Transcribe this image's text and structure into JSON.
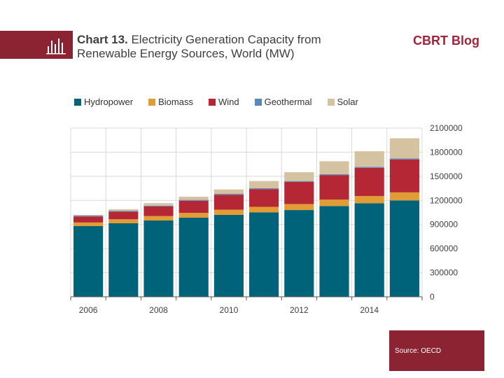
{
  "header": {
    "title_bold": "Chart 13.",
    "title_rest": " Electricity Generation Capacity from",
    "title_line2": "Renewable Energy Sources, World (MW)",
    "brand": "CBRT Blog"
  },
  "legend": [
    {
      "label": "Hydropower",
      "color": "#006379"
    },
    {
      "label": "Biomass",
      "color": "#e29c36"
    },
    {
      "label": "Wind",
      "color": "#b52735"
    },
    {
      "label": "Geothermal",
      "color": "#5b87b7"
    },
    {
      "label": "Solar",
      "color": "#d5c2a0"
    }
  ],
  "source": "Source: OECD",
  "chart_data": {
    "type": "bar",
    "stacked": true,
    "categories": [
      "2006",
      "2007",
      "2008",
      "2009",
      "2010",
      "2011",
      "2012",
      "2013",
      "2014",
      "2015"
    ],
    "x_tick_labels": [
      "2006",
      "",
      "2008",
      "",
      "2010",
      "",
      "2012",
      "",
      "2014",
      ""
    ],
    "series": [
      {
        "name": "Hydropower",
        "values": [
          880000,
          915000,
          950000,
          985000,
          1020000,
          1050000,
          1080000,
          1130000,
          1165000,
          1200000
        ]
      },
      {
        "name": "Biomass",
        "values": [
          45000,
          50000,
          55000,
          60000,
          65000,
          70000,
          75000,
          80000,
          90000,
          100000
        ]
      },
      {
        "name": "Wind",
        "values": [
          75000,
          95000,
          120000,
          150000,
          185000,
          220000,
          275000,
          305000,
          350000,
          410000
        ]
      },
      {
        "name": "Geothermal",
        "values": [
          10000,
          10000,
          10000,
          11000,
          11000,
          11000,
          11000,
          12000,
          12000,
          13000
        ]
      },
      {
        "name": "Solar",
        "values": [
          10000,
          20000,
          30000,
          40000,
          55000,
          90000,
          110000,
          160000,
          195000,
          250000
        ]
      }
    ],
    "y_ticks": [
      "0",
      "300000",
      "600000",
      "900000",
      "1200000",
      "1500000",
      "1800000",
      "2100000"
    ],
    "ylim": [
      0,
      2100000
    ],
    "y_axis_side": "right",
    "grid": true,
    "legend_position": "top"
  }
}
